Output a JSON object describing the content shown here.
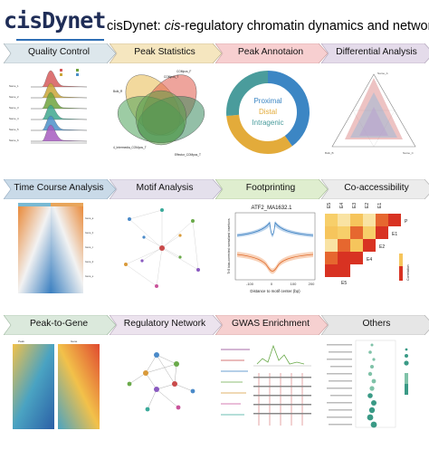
{
  "header": {
    "logo_text": "cisDynet",
    "title_prefix": "cisDynet: ",
    "title_italic": "cis",
    "title_suffix": "-regulatory chromatin dynamics and networks"
  },
  "modules": [
    {
      "label": "Quality Control",
      "color": "#dde7ec"
    },
    {
      "label": "Peak Statistics",
      "color": "#f5e6bf"
    },
    {
      "label": "Peak Annotaion",
      "color": "#f7cfd0"
    },
    {
      "label": "Differential Analysis",
      "color": "#e4dbea"
    },
    {
      "label": "Time Course Analysis",
      "color": "#c9dae8"
    },
    {
      "label": "Motif Analysis",
      "color": "#e4e0ec"
    },
    {
      "label": "Footprinting",
      "color": "#dfeecf"
    },
    {
      "label": "Co-accessibility",
      "color": "#ececec"
    },
    {
      "label": "Peak-to-Gene",
      "color": "#dbe9dc"
    },
    {
      "label": "Regulatory Network",
      "color": "#ece3ee"
    },
    {
      "label": "GWAS Enrichment",
      "color": "#f6d0d0"
    },
    {
      "label": "Others",
      "color": "#e6e6e6"
    }
  ],
  "peak_annotation": {
    "segments": [
      {
        "label": "Proximal",
        "color": "#3c86c4"
      },
      {
        "label": "Distal",
        "color": "#e3ab3a"
      },
      {
        "label": "Intragenic",
        "color": "#4a9c9c"
      }
    ]
  },
  "footprint": {
    "title": "ATF2_MA1632.1",
    "xlabel": "Distance to motif center (bp)",
    "ylabel": "Tn5 bias-corrected normalized insertions",
    "xticks": [
      "-100",
      "0",
      "100",
      "200"
    ]
  },
  "coaccess": {
    "col_labels": [
      "E5",
      "E4",
      "E3",
      "E2",
      "E1",
      "P"
    ],
    "row_labels": [
      "P",
      "E1",
      "E2",
      "E4",
      "E5"
    ],
    "legend_label": "Correlation"
  },
  "venn": {
    "labels": [
      "Bulk_R",
      "COMpos_F",
      "COMpos_T",
      "Effector_COMpos_T",
      "4_Intermedia_COMpos_T"
    ]
  },
  "colors": {
    "accent": "#2f6fb5",
    "logo": "#1f2d57"
  }
}
